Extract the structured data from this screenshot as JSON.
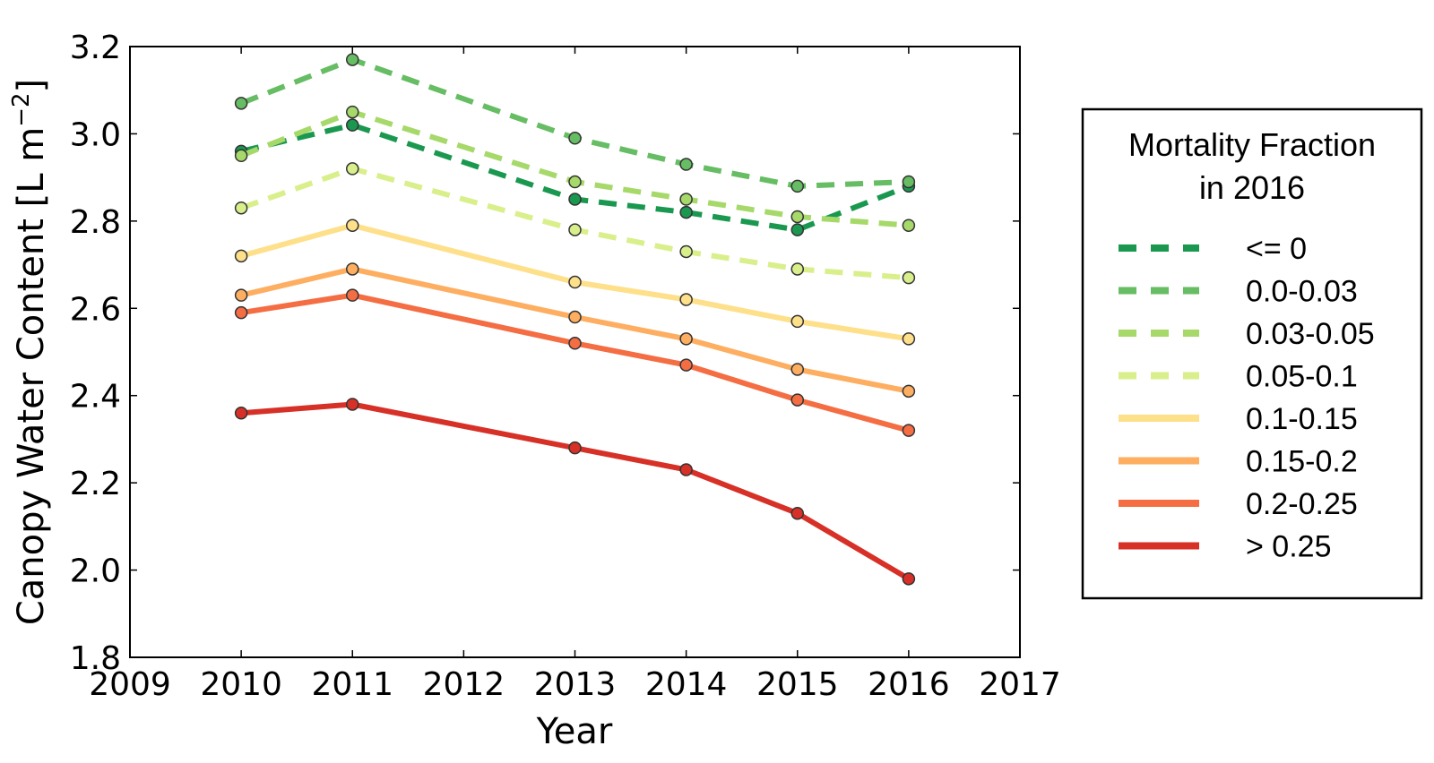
{
  "chart_data": {
    "type": "line",
    "xlabel": "Year",
    "ylabel": "Canopy Water Content [L m",
    "ylabel_superscript": "−2",
    "ylabel_close": "]",
    "xlim": [
      2009,
      2017
    ],
    "ylim": [
      1.8,
      3.2
    ],
    "xticks": [
      "2009",
      "2010",
      "2011",
      "2012",
      "2013",
      "2014",
      "2015",
      "2016",
      "2017"
    ],
    "yticks": [
      "1.8",
      "2.0",
      "2.2",
      "2.4",
      "2.6",
      "2.8",
      "3.0",
      "3.2"
    ],
    "grid": false,
    "legend": {
      "title_line1": "Mortality Fraction",
      "title_line2": "in 2016",
      "placement": "right, outside plot"
    },
    "x": [
      2010,
      2011,
      2013,
      2014,
      2015,
      2016
    ],
    "series": [
      {
        "name": "<= 0",
        "color": "#1a9850",
        "style": "dashed",
        "values": [
          2.96,
          3.02,
          2.85,
          2.82,
          2.78,
          2.88
        ]
      },
      {
        "name": "0.0-0.03",
        "color": "#66bd63",
        "style": "dashed",
        "values": [
          3.07,
          3.17,
          2.99,
          2.93,
          2.88,
          2.89
        ]
      },
      {
        "name": "0.03-0.05",
        "color": "#a6d96a",
        "style": "dashed",
        "values": [
          2.95,
          3.05,
          2.89,
          2.85,
          2.81,
          2.79
        ]
      },
      {
        "name": "0.05-0.1",
        "color": "#d9ef8b",
        "style": "dashed",
        "values": [
          2.83,
          2.92,
          2.78,
          2.73,
          2.69,
          2.67
        ]
      },
      {
        "name": "0.1-0.15",
        "color": "#fee08b",
        "style": "solid",
        "values": [
          2.72,
          2.79,
          2.66,
          2.62,
          2.57,
          2.53
        ]
      },
      {
        "name": "0.15-0.2",
        "color": "#fdae61",
        "style": "solid",
        "values": [
          2.63,
          2.69,
          2.58,
          2.53,
          2.46,
          2.41
        ]
      },
      {
        "name": "0.2-0.25",
        "color": "#f46d43",
        "style": "solid",
        "values": [
          2.59,
          2.63,
          2.52,
          2.47,
          2.39,
          2.32
        ]
      },
      {
        "name": "> 0.25",
        "color": "#d73027",
        "style": "solid",
        "values": [
          2.36,
          2.38,
          2.28,
          2.23,
          2.13,
          1.98
        ]
      }
    ]
  }
}
